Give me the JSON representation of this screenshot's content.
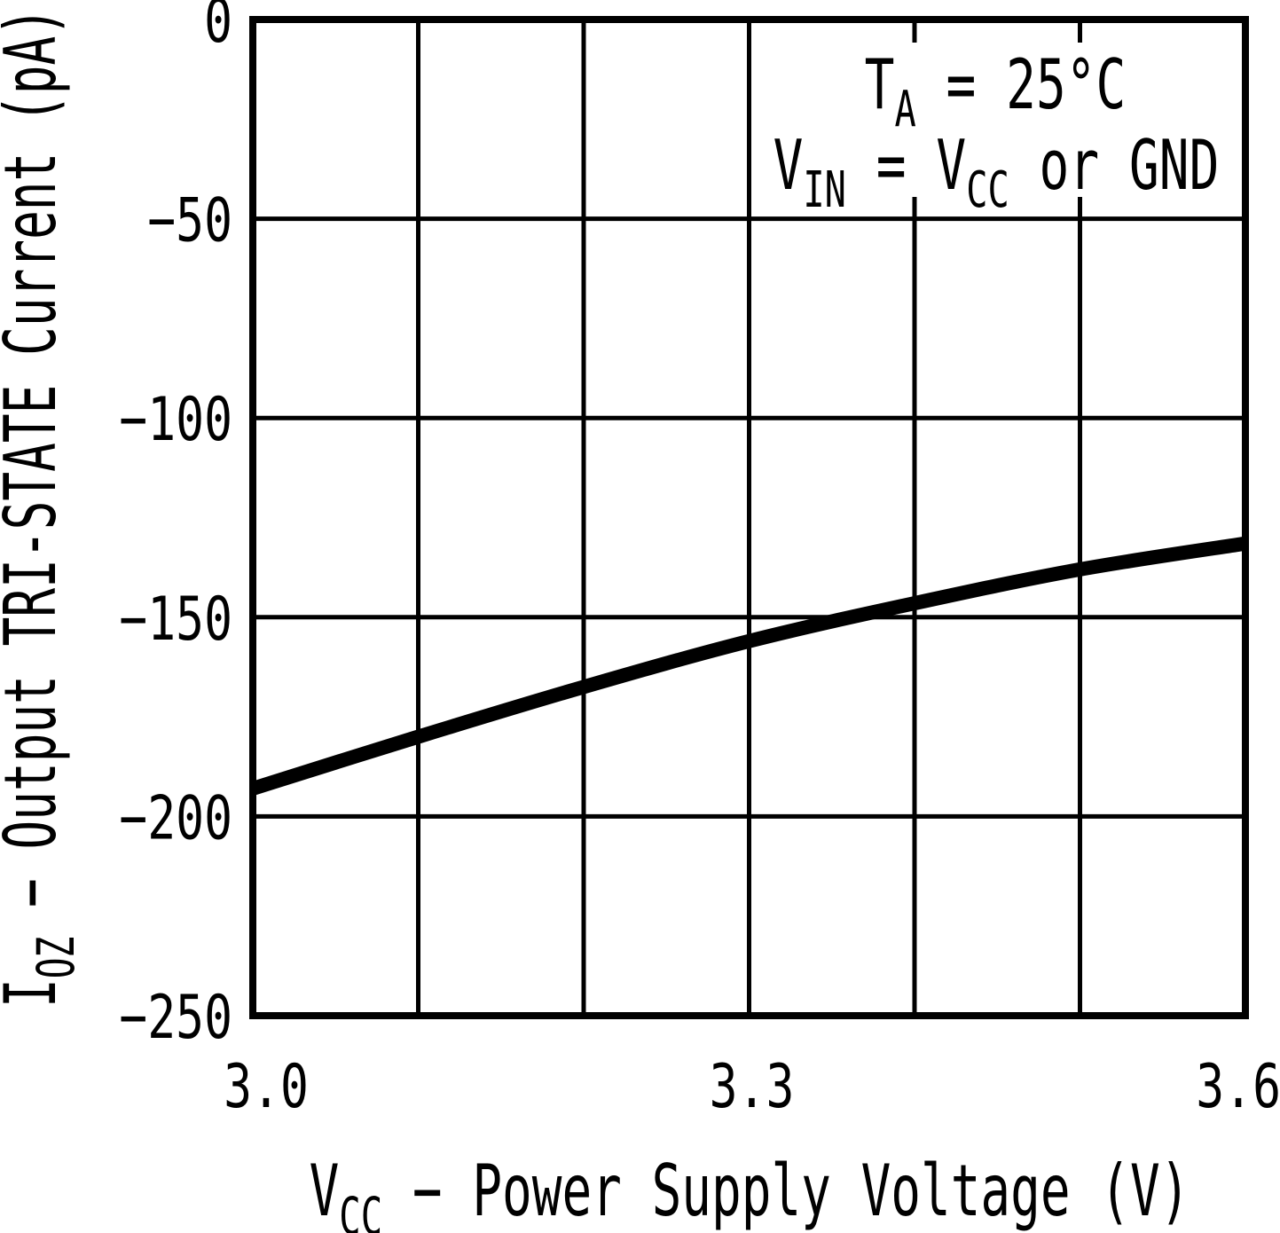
{
  "chart_data": {
    "type": "line",
    "title": "",
    "xlabel": "VCC − Power Supply Voltage (V)",
    "xlabel_segments": [
      {
        "t": "V"
      },
      {
        "t": "CC",
        "sub": true
      },
      {
        "t": " − Power Supply Voltage (V)"
      }
    ],
    "ylabel": "IOZ − Output TRI-STATE Current (pA)",
    "ylabel_segments": [
      {
        "t": "I"
      },
      {
        "t": "OZ",
        "sub": true
      },
      {
        "t": " − Output TRI-STATE Current (pA)"
      }
    ],
    "annotations": [
      "TA = 25°C",
      "VIN = VCC or GND"
    ],
    "annotation_segments": [
      [
        {
          "t": "T"
        },
        {
          "t": "A",
          "sub": true
        },
        {
          "t": " = 25°C"
        }
      ],
      [
        {
          "t": "V"
        },
        {
          "t": "IN",
          "sub": true
        },
        {
          "t": " = V"
        },
        {
          "t": "CC",
          "sub": true
        },
        {
          "t": " or GND"
        }
      ]
    ],
    "x": [
      3.0,
      3.1,
      3.2,
      3.3,
      3.4,
      3.5,
      3.6
    ],
    "series": [
      {
        "name": "IOZ output TRI-STATE current",
        "values": [
          -193,
          -180,
          -167.5,
          -156,
          -146.5,
          -138,
          -131.5
        ]
      }
    ],
    "xlim": [
      3.0,
      3.6
    ],
    "ylim": [
      -250,
      0
    ],
    "x_grid_step": 0.1,
    "y_grid_step": 50,
    "grid": true,
    "legend": "none",
    "x_ticks": [
      {
        "value": 3.0,
        "label": "3.0"
      },
      {
        "value": 3.3,
        "label": "3.3"
      },
      {
        "value": 3.6,
        "label": "3.6"
      }
    ],
    "y_ticks": [
      {
        "value": 0,
        "label": "0"
      },
      {
        "value": -50,
        "label": "−50"
      },
      {
        "value": -100,
        "label": "−100"
      },
      {
        "value": -150,
        "label": "−150"
      },
      {
        "value": -200,
        "label": "−200"
      },
      {
        "value": -250,
        "label": "−250"
      }
    ],
    "line_color": "#000000",
    "grid_color": "#000000",
    "background": "#ffffff"
  }
}
